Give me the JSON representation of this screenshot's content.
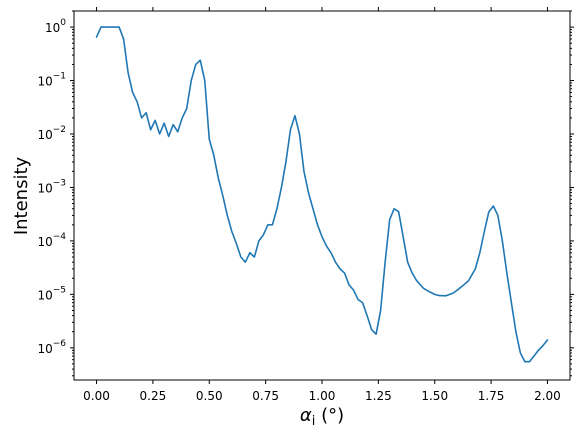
{
  "chart_data": {
    "type": "line",
    "title": "",
    "xlabel": "α_i (°)",
    "xlabel_parts": {
      "symbol": "α",
      "subscript": "i",
      "unit": " (°)"
    },
    "ylabel": "Intensity",
    "xlim": [
      -0.1,
      2.1
    ],
    "ylim": [
      2.5e-07,
      2.0
    ],
    "yscale": "log",
    "grid": false,
    "x_ticks": [
      0.0,
      0.25,
      0.5,
      0.75,
      1.0,
      1.25,
      1.5,
      1.75,
      2.0
    ],
    "x_tick_labels": [
      "0.00",
      "0.25",
      "0.50",
      "0.75",
      "1.00",
      "1.25",
      "1.50",
      "1.75",
      "2.00"
    ],
    "y_ticks": [
      1e-06,
      1e-05,
      0.0001,
      0.001,
      0.01,
      0.1,
      1
    ],
    "y_tick_labels": [
      {
        "base": "10",
        "exp": "−6"
      },
      {
        "base": "10",
        "exp": "−5"
      },
      {
        "base": "10",
        "exp": "−4"
      },
      {
        "base": "10",
        "exp": "−3"
      },
      {
        "base": "10",
        "exp": "−2"
      },
      {
        "base": "10",
        "exp": "−1"
      },
      {
        "base": "10",
        "exp": "0"
      }
    ],
    "series": [
      {
        "color": "#1f77b4",
        "x": [
          0.0,
          0.02,
          0.05,
          0.08,
          0.1,
          0.12,
          0.14,
          0.16,
          0.18,
          0.2,
          0.22,
          0.24,
          0.26,
          0.28,
          0.3,
          0.32,
          0.34,
          0.36,
          0.38,
          0.4,
          0.42,
          0.44,
          0.46,
          0.48,
          0.5,
          0.52,
          0.54,
          0.56,
          0.58,
          0.6,
          0.62,
          0.64,
          0.66,
          0.68,
          0.7,
          0.72,
          0.74,
          0.76,
          0.78,
          0.8,
          0.82,
          0.84,
          0.86,
          0.88,
          0.9,
          0.92,
          0.94,
          0.96,
          0.98,
          1.0,
          1.02,
          1.04,
          1.06,
          1.08,
          1.1,
          1.12,
          1.14,
          1.16,
          1.18,
          1.2,
          1.22,
          1.24,
          1.26,
          1.28,
          1.3,
          1.32,
          1.34,
          1.36,
          1.38,
          1.4,
          1.42,
          1.45,
          1.48,
          1.5,
          1.52,
          1.55,
          1.58,
          1.6,
          1.62,
          1.65,
          1.68,
          1.7,
          1.72,
          1.74,
          1.76,
          1.78,
          1.8,
          1.82,
          1.84,
          1.86,
          1.88,
          1.9,
          1.92,
          1.94,
          1.96,
          1.98,
          2.0
        ],
        "y": [
          0.65,
          1.0,
          1.0,
          1.0,
          1.0,
          0.6,
          0.14,
          0.06,
          0.04,
          0.02,
          0.025,
          0.012,
          0.018,
          0.01,
          0.016,
          0.009,
          0.015,
          0.011,
          0.02,
          0.03,
          0.1,
          0.2,
          0.24,
          0.1,
          0.008,
          0.004,
          0.0015,
          0.0007,
          0.0003,
          0.00015,
          9e-05,
          5e-05,
          4e-05,
          6e-05,
          5e-05,
          0.0001,
          0.00013,
          0.0002,
          0.0002,
          0.0004,
          0.001,
          0.003,
          0.012,
          0.022,
          0.01,
          0.002,
          0.0008,
          0.0004,
          0.0002,
          0.00012,
          8e-05,
          6e-05,
          4e-05,
          3e-05,
          2.5e-05,
          1.5e-05,
          1.2e-05,
          8e-06,
          7e-06,
          4e-06,
          2.2e-06,
          1.8e-06,
          5e-06,
          4e-05,
          0.00025,
          0.0004,
          0.00035,
          0.00012,
          4e-05,
          2.5e-05,
          1.8e-05,
          1.3e-05,
          1.1e-05,
          1e-05,
          9.5e-06,
          9.4e-06,
          1.05e-05,
          1.2e-05,
          1.4e-05,
          1.8e-05,
          3e-05,
          6e-05,
          0.00015,
          0.00035,
          0.00045,
          0.0003,
          0.0001,
          2.5e-05,
          7e-06,
          2e-06,
          8e-07,
          5.5e-07,
          5.5e-07,
          7e-07,
          9e-07,
          1.1e-06,
          1.4e-06
        ]
      }
    ]
  }
}
